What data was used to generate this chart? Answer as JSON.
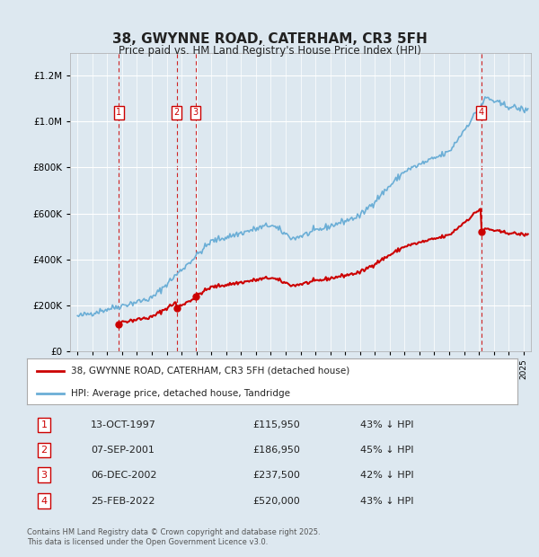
{
  "title": "38, GWYNNE ROAD, CATERHAM, CR3 5FH",
  "subtitle": "Price paid vs. HM Land Registry's House Price Index (HPI)",
  "background_color": "#dde8f0",
  "plot_bg_color": "#dde8f0",
  "hpi_color": "#6baed6",
  "price_color": "#cc0000",
  "transactions": [
    {
      "num": 1,
      "date_num": 1997.79,
      "price": 115950,
      "label": "13-OCT-1997",
      "pct": "43% ↓ HPI"
    },
    {
      "num": 2,
      "date_num": 2001.68,
      "price": 186950,
      "label": "07-SEP-2001",
      "pct": "45% ↓ HPI"
    },
    {
      "num": 3,
      "date_num": 2002.93,
      "price": 237500,
      "label": "06-DEC-2002",
      "pct": "42% ↓ HPI"
    },
    {
      "num": 4,
      "date_num": 2022.15,
      "price": 520000,
      "label": "25-FEB-2022",
      "pct": "43% ↓ HPI"
    }
  ],
  "legend_line1": "38, GWYNNE ROAD, CATERHAM, CR3 5FH (detached house)",
  "legend_line2": "HPI: Average price, detached house, Tandridge",
  "footer": "Contains HM Land Registry data © Crown copyright and database right 2025.\nThis data is licensed under the Open Government Licence v3.0.",
  "table_entries": [
    [
      "1",
      "13-OCT-1997",
      "£115,950",
      "43% ↓ HPI"
    ],
    [
      "2",
      "07-SEP-2001",
      "£186,950",
      "45% ↓ HPI"
    ],
    [
      "3",
      "06-DEC-2002",
      "£237,500",
      "42% ↓ HPI"
    ],
    [
      "4",
      "25-FEB-2022",
      "£520,000",
      "43% ↓ HPI"
    ]
  ],
  "ylim": [
    0,
    1300000
  ],
  "xlim": [
    1994.5,
    2025.5
  ]
}
